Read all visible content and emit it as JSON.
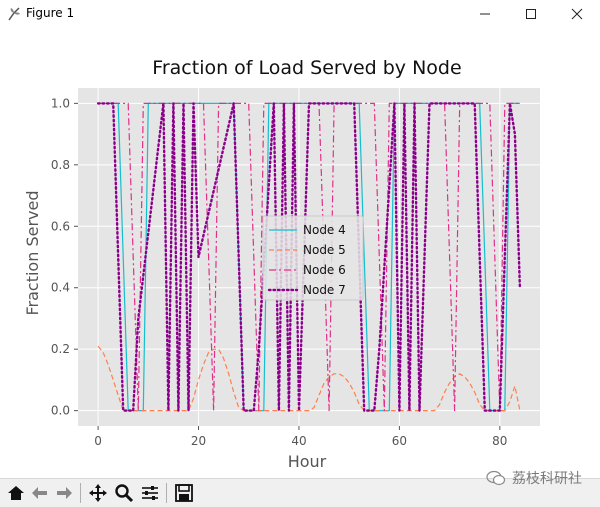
{
  "window": {
    "title": "Figure 1",
    "icons": [
      "app-feather-icon",
      "minimize-icon",
      "maximize-icon",
      "close-icon"
    ]
  },
  "toolbar": {
    "buttons": [
      "home-icon",
      "back-icon",
      "forward-icon",
      "pan-icon",
      "zoom-icon",
      "configure-subplots-icon",
      "save-icon"
    ]
  },
  "watermark": {
    "text": "荔枝科研社"
  },
  "chart_data": {
    "type": "line",
    "title": "Fraction of Load Served by Node",
    "xlabel": "Hour",
    "ylabel": "Fraction Served",
    "xlim": [
      -4,
      88
    ],
    "ylim": [
      -0.05,
      1.05
    ],
    "xticks": [
      0,
      20,
      40,
      60,
      80
    ],
    "yticks": [
      0.0,
      0.2,
      0.4,
      0.6,
      0.8,
      1.0
    ],
    "grid": true,
    "legend_position": "center",
    "series": [
      {
        "name": "Node 4",
        "color": "#17becf",
        "dash": "solid",
        "x": [
          0,
          4,
          5,
          6,
          9,
          10,
          11,
          27,
          28,
          29,
          33,
          34,
          35,
          52,
          53,
          54,
          58,
          59,
          60,
          76,
          77,
          78,
          81,
          82,
          84
        ],
        "y": [
          1,
          1,
          0.5,
          0,
          0,
          1,
          1,
          1,
          0.5,
          0,
          0,
          1,
          1,
          1,
          0.5,
          0,
          0,
          1,
          1,
          1,
          0.5,
          0,
          0,
          1,
          1
        ]
      },
      {
        "name": "Node 5",
        "color": "#ff7f50",
        "dash": "dashed",
        "x": [
          0,
          1,
          2,
          3,
          4,
          5,
          6,
          7,
          8,
          9,
          10,
          11,
          12,
          13,
          14,
          15,
          16,
          17,
          18,
          19,
          20,
          21,
          22,
          23,
          24,
          25,
          26,
          27,
          28,
          29,
          30,
          31,
          32,
          33,
          34,
          35,
          36,
          37,
          38,
          39,
          40,
          41,
          42,
          43,
          44,
          45,
          46,
          47,
          48,
          49,
          50,
          51,
          52,
          53,
          54,
          55,
          56,
          57,
          58,
          59,
          60,
          61,
          62,
          63,
          64,
          65,
          66,
          67,
          68,
          69,
          70,
          71,
          72,
          73,
          74,
          75,
          76,
          77,
          78,
          79,
          80,
          81,
          82,
          83,
          84
        ],
        "y": [
          0.21,
          0.19,
          0.15,
          0.1,
          0.05,
          0,
          0,
          0,
          0,
          0,
          0,
          0,
          0,
          0,
          0,
          0,
          0,
          0,
          0,
          0.04,
          0.1,
          0.15,
          0.19,
          0.2,
          0.2,
          0.17,
          0.12,
          0.06,
          0.01,
          0,
          0,
          0,
          0,
          0,
          0,
          0,
          0,
          0,
          0,
          0,
          0,
          0,
          0,
          0.01,
          0.05,
          0.09,
          0.11,
          0.12,
          0.12,
          0.11,
          0.09,
          0.06,
          0.02,
          0,
          0,
          0,
          0,
          0,
          0,
          0,
          0,
          0,
          0,
          0,
          0,
          0,
          0,
          0,
          0.02,
          0.06,
          0.09,
          0.11,
          0.12,
          0.11,
          0.09,
          0.06,
          0.02,
          0,
          0,
          0,
          0,
          0,
          0.03,
          0.08,
          0
        ]
      },
      {
        "name": "Node 6",
        "color": "#e0308a",
        "dash": "dashdot",
        "x": [
          0,
          6,
          7,
          8,
          9,
          21,
          22,
          23,
          24,
          30,
          31,
          32,
          33,
          44,
          45,
          46,
          47,
          55,
          56,
          57,
          58,
          69,
          70,
          71,
          72,
          78,
          79,
          80,
          81,
          84
        ],
        "y": [
          1,
          1,
          0.5,
          0,
          1,
          1,
          0.5,
          0,
          1,
          1,
          0.5,
          0,
          1,
          1,
          0.5,
          0,
          1,
          1,
          0.5,
          0,
          1,
          1,
          0.5,
          0,
          1,
          1,
          0.5,
          0,
          1,
          1
        ]
      },
      {
        "name": "Node 7",
        "color": "#8b008b",
        "dash": "dotted",
        "x": [
          0,
          3,
          4,
          5,
          6,
          7,
          8,
          13,
          14,
          15,
          16,
          17,
          18,
          19,
          20,
          27,
          28,
          29,
          30,
          31,
          32,
          35,
          36,
          37,
          38,
          39,
          40,
          41,
          42,
          51,
          52,
          53,
          54,
          55,
          56,
          59,
          60,
          61,
          62,
          63,
          64,
          65,
          66,
          75,
          76,
          77,
          78,
          79,
          80,
          81,
          82,
          83,
          84
        ],
        "y": [
          1,
          1,
          0.5,
          0,
          0,
          0,
          0.3,
          1,
          0,
          1,
          0,
          1,
          0,
          1,
          0.5,
          1,
          0.5,
          0,
          0,
          0,
          0.2,
          1,
          0,
          1,
          0,
          1,
          0,
          0.5,
          1,
          1,
          0.5,
          0,
          0,
          0,
          0.2,
          1,
          0,
          1,
          0,
          1,
          0,
          0.5,
          1,
          1,
          0.5,
          0,
          0,
          0,
          0,
          0.5,
          1,
          0.9,
          0.4
        ]
      }
    ]
  }
}
